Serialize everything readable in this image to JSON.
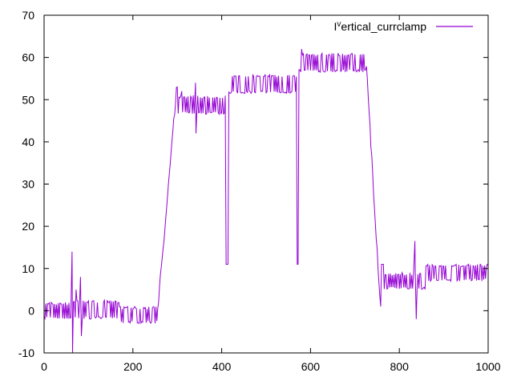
{
  "chart_data": {
    "type": "line",
    "title": "",
    "xlabel": "",
    "ylabel": "",
    "xlim": [
      0,
      1000
    ],
    "ylim": [
      -10,
      70
    ],
    "x_ticks": [
      0,
      200,
      400,
      600,
      800,
      1000
    ],
    "y_ticks": [
      -10,
      0,
      10,
      20,
      30,
      40,
      50,
      60,
      70
    ],
    "grid": false,
    "legend_position": "top-right",
    "series": [
      {
        "name_prefix": "I",
        "name_superscript": "v",
        "name_suffix": "ertical_currclamp",
        "color": "#9400d3",
        "segments": [
          {
            "x": [
              0,
              60
            ],
            "low": -2,
            "high": 2
          },
          {
            "x": [
              60,
              170
            ],
            "low": -2,
            "high": 2.5
          },
          {
            "x": [
              170,
              257
            ],
            "low": -3,
            "high": 1
          },
          {
            "x": [
              292,
              410
            ],
            "low": 46.5,
            "high": 51
          },
          {
            "x": [
              415,
              570
            ],
            "low": 51.5,
            "high": 56
          },
          {
            "x": [
              573,
              725
            ],
            "low": 56.5,
            "high": 61
          },
          {
            "x": [
              765,
              860
            ],
            "low": 5,
            "high": 9
          },
          {
            "x": [
              860,
              1000
            ],
            "low": 7,
            "high": 11
          }
        ],
        "transitions": [
          {
            "x": [
              257,
              300
            ],
            "y": [
              1,
              54
            ]
          },
          {
            "x": [
              725,
              760
            ],
            "y": [
              59,
              -3
            ]
          }
        ],
        "spikes": [
          {
            "x": 63,
            "y": 14
          },
          {
            "x": 64,
            "y": -10
          },
          {
            "x": 72,
            "y": 5
          },
          {
            "x": 82,
            "y": 8
          },
          {
            "x": 84,
            "y": -6
          },
          {
            "x": 300,
            "y": 53
          },
          {
            "x": 310,
            "y": 52
          },
          {
            "x": 341,
            "y": 54
          },
          {
            "x": 342,
            "y": 42
          },
          {
            "x": 580,
            "y": 62
          },
          {
            "x": 835,
            "y": 16.5
          },
          {
            "x": 838,
            "y": -2
          }
        ]
      }
    ]
  }
}
